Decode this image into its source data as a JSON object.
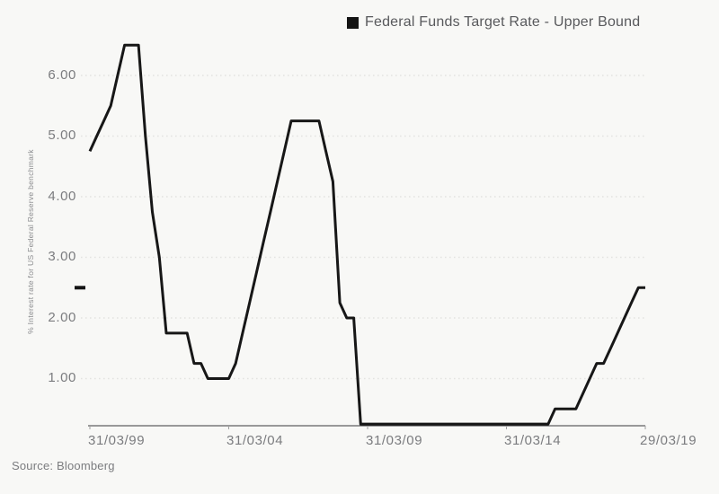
{
  "chart_data": {
    "type": "line",
    "legend": "Federal Funds Target Rate - Upper Bound",
    "ylabel": "% Interest rate for US Federal Reserve benchmark",
    "source": "Source: Bloomberg",
    "y_tick_labels_top_down": [
      "6.00",
      "5.00",
      "4.00",
      "3.00",
      "2.00",
      "1.00"
    ],
    "x_tick_labels": [
      "31/03/99",
      "31/03/04",
      "31/03/09",
      "31/03/14",
      "29/03/19"
    ],
    "x_tick_positions": [
      0,
      20,
      40,
      60,
      80
    ],
    "ylim": [
      0.25,
      6.5
    ],
    "grid": "dotted-horizontal",
    "legend_position": "top-center-right",
    "last_value": 2.5,
    "dates": [
      "31/03/99",
      "30/06/99",
      "30/09/99",
      "31/12/99",
      "31/03/00",
      "30/06/00",
      "30/09/00",
      "31/12/00",
      "31/03/01",
      "30/06/01",
      "30/09/01",
      "31/12/01",
      "31/03/02",
      "30/06/02",
      "30/09/02",
      "31/12/02",
      "31/03/03",
      "30/06/03",
      "30/09/03",
      "31/12/03",
      "31/03/04",
      "30/06/04",
      "30/09/04",
      "31/12/04",
      "31/03/05",
      "30/06/05",
      "30/09/05",
      "31/12/05",
      "31/03/06",
      "30/06/06",
      "30/09/06",
      "31/12/06",
      "31/03/07",
      "30/06/07",
      "30/09/07",
      "31/12/07",
      "31/03/08",
      "30/06/08",
      "30/09/08",
      "31/12/08",
      "31/03/09",
      "30/06/09",
      "30/09/09",
      "31/12/09",
      "31/03/10",
      "30/06/10",
      "30/09/10",
      "31/12/10",
      "31/03/11",
      "30/06/11",
      "30/09/11",
      "31/12/11",
      "31/03/12",
      "30/06/12",
      "30/09/12",
      "31/12/12",
      "31/03/13",
      "30/06/13",
      "30/09/13",
      "31/12/13",
      "31/03/14",
      "30/06/14",
      "30/09/14",
      "31/12/14",
      "31/03/15",
      "30/06/15",
      "30/09/15",
      "31/12/15",
      "31/03/16",
      "30/06/16",
      "30/09/16",
      "31/12/16",
      "31/03/17",
      "30/06/17",
      "30/09/17",
      "31/12/17",
      "31/03/18",
      "30/06/18",
      "30/09/18",
      "31/12/18",
      "29/03/19"
    ],
    "values": [
      4.75,
      5.0,
      5.25,
      5.5,
      6.0,
      6.5,
      6.5,
      6.5,
      5.0,
      3.75,
      3.0,
      1.75,
      1.75,
      1.75,
      1.75,
      1.25,
      1.25,
      1.0,
      1.0,
      1.0,
      1.0,
      1.25,
      1.75,
      2.25,
      2.75,
      3.25,
      3.75,
      4.25,
      4.75,
      5.25,
      5.25,
      5.25,
      5.25,
      5.25,
      4.75,
      4.25,
      2.25,
      2.0,
      2.0,
      0.25,
      0.25,
      0.25,
      0.25,
      0.25,
      0.25,
      0.25,
      0.25,
      0.25,
      0.25,
      0.25,
      0.25,
      0.25,
      0.25,
      0.25,
      0.25,
      0.25,
      0.25,
      0.25,
      0.25,
      0.25,
      0.25,
      0.25,
      0.25,
      0.25,
      0.25,
      0.25,
      0.25,
      0.5,
      0.5,
      0.5,
      0.5,
      0.75,
      1.0,
      1.25,
      1.25,
      1.5,
      1.75,
      2.0,
      2.25,
      2.5,
      2.5
    ],
    "colors": {
      "line": "#171717",
      "marker": "#141414",
      "grid": "#e3e3e1",
      "axis": "#3a3a3c",
      "tick": "#a0a0a0",
      "text": "#7b7c7f",
      "legend_text": "#58595c",
      "background": "#f8f8f6"
    }
  }
}
